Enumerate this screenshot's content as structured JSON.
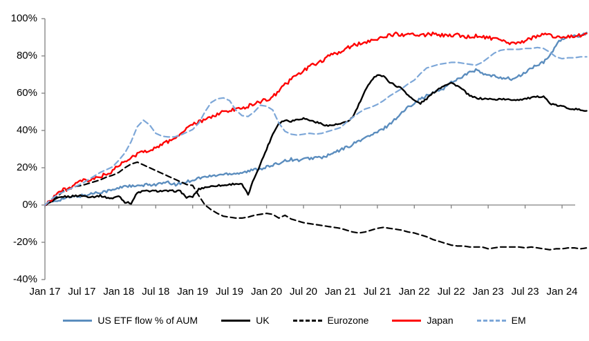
{
  "chart_data": {
    "type": "line",
    "title": "",
    "xlabel": "",
    "ylabel": "",
    "x_start": "Jan 2017",
    "x_frequency": "monthly",
    "x_tick_labels": [
      "Jan 17",
      "Jul 17",
      "Jan 18",
      "Jul 18",
      "Jan 19",
      "Jul 19",
      "Jan 20",
      "Jul 20",
      "Jan 21",
      "Jul 21",
      "Jan 22",
      "Jul 22",
      "Jan 23",
      "Jul 23",
      "Jan 24"
    ],
    "y_tick_labels": [
      "100%",
      "80%",
      "60%",
      "40%",
      "20%",
      "0%",
      "-20%",
      "-40%"
    ],
    "y_tick_values": [
      100,
      80,
      60,
      40,
      20,
      0,
      -20,
      -40
    ],
    "ylim": [
      -40,
      100
    ],
    "grid": false,
    "legend_position": "bottom",
    "axis_color": "#808080",
    "series": [
      {
        "name": "US ETF flow % of AUM",
        "color": "#5b8dbe",
        "style": "solid",
        "values": [
          0,
          1.5,
          2.5,
          3.5,
          4,
          4.5,
          5,
          5.5,
          6.5,
          7,
          7.5,
          8,
          9,
          10.5,
          10,
          10,
          10.5,
          11,
          11,
          11.5,
          12,
          11,
          11.5,
          12.5,
          13.5,
          14.5,
          15,
          15.5,
          16,
          16.5,
          17,
          17,
          17.5,
          18,
          19,
          19.5,
          20.5,
          21,
          22.5,
          24,
          24.5,
          24,
          24.5,
          25,
          25.5,
          25.5,
          26.5,
          28,
          29.5,
          31,
          32.5,
          34.5,
          36,
          37.5,
          39,
          41,
          43.5,
          46.5,
          49.5,
          52.5,
          55,
          57,
          58.5,
          60,
          61.5,
          63,
          66,
          67.5,
          69.5,
          71,
          72.5,
          70.5,
          69.5,
          69,
          68.5,
          68,
          67.5,
          69,
          71,
          73.5,
          75,
          76.5,
          80,
          86,
          89,
          90,
          90.5,
          91,
          92.5
        ]
      },
      {
        "name": "UK",
        "color": "#000000",
        "style": "solid",
        "values": [
          0,
          1.5,
          3.5,
          4.5,
          4.5,
          5,
          5,
          4.5,
          4.5,
          5,
          4,
          3.5,
          5,
          1.5,
          1,
          6.5,
          7.5,
          7.5,
          7.5,
          7.5,
          7.5,
          7.5,
          7.5,
          4,
          4.5,
          8.5,
          9.5,
          10,
          10.5,
          10.5,
          11,
          11.5,
          11,
          5.5,
          14.5,
          22,
          30,
          38,
          44,
          45.5,
          45,
          46,
          46.5,
          45.5,
          44.5,
          43.5,
          42.5,
          43,
          43.5,
          44.5,
          47,
          54,
          61,
          67,
          70,
          69,
          66,
          64,
          62.5,
          59,
          56,
          54.5,
          57,
          60,
          62.5,
          64.5,
          65.5,
          64,
          61.5,
          58.5,
          57.5,
          57,
          57,
          56.5,
          57,
          56.5,
          56.5,
          56.5,
          57,
          57.5,
          58,
          58.5,
          54.5,
          53.5,
          53,
          52,
          51.5,
          51,
          50.5
        ]
      },
      {
        "name": "Eurozone",
        "color": "#000000",
        "style": "dashed",
        "values": [
          0,
          2,
          4.5,
          7.5,
          9,
          10,
          10.5,
          11.5,
          12.5,
          13.5,
          15,
          16,
          17.5,
          20,
          22,
          23,
          21.5,
          20,
          18.5,
          17,
          15.5,
          14,
          12.5,
          11,
          10.5,
          5,
          0,
          -2.5,
          -4.5,
          -6,
          -6.5,
          -7,
          -7,
          -6.5,
          -5.5,
          -5,
          -4.5,
          -5,
          -7,
          -5.5,
          -7.5,
          -8.5,
          -9.5,
          -10,
          -10.5,
          -11,
          -11.5,
          -12,
          -12.5,
          -13.5,
          -14.5,
          -15,
          -14.5,
          -13.5,
          -12.5,
          -12,
          -12.5,
          -13,
          -13.5,
          -14.5,
          -15,
          -16,
          -17,
          -18.5,
          -19.5,
          -20.5,
          -21.5,
          -22,
          -22,
          -22.5,
          -22.5,
          -22.5,
          -23.5,
          -23,
          -22.5,
          -22.5,
          -22.5,
          -22.5,
          -23,
          -22.5,
          -23,
          -23.5,
          -24,
          -23.5,
          -23.5,
          -23,
          -23,
          -23.5,
          -23
        ]
      },
      {
        "name": "Japan",
        "color": "#fe0000",
        "style": "solid",
        "values": [
          0,
          3,
          6.5,
          8,
          9,
          11,
          13,
          13,
          14,
          15.5,
          16.5,
          18,
          21.5,
          23,
          25,
          27.5,
          28.5,
          29.5,
          31,
          32.5,
          34,
          36,
          38,
          41,
          43,
          44.5,
          45.5,
          47.5,
          48.5,
          50,
          50.5,
          51.5,
          52,
          53,
          54.5,
          55.5,
          56.5,
          58,
          61,
          64.5,
          67.5,
          70,
          72,
          74,
          76,
          77.5,
          79.5,
          81,
          82.5,
          84,
          85.5,
          86.5,
          87.5,
          88.5,
          89.5,
          90,
          91,
          92,
          91,
          91.5,
          92,
          91,
          91.5,
          92,
          90.5,
          91.5,
          91,
          91.5,
          90.5,
          90,
          91,
          90,
          90,
          89,
          88,
          87,
          86.5,
          87,
          88,
          89.5,
          91,
          91.5,
          91,
          90.5,
          90,
          90.5,
          90.5,
          91,
          92
        ]
      },
      {
        "name": "EM",
        "color": "#7da7d8",
        "style": "dashed",
        "values": [
          0,
          3,
          5.5,
          7,
          8.5,
          10,
          11.5,
          13.5,
          15.5,
          17.5,
          19,
          20.5,
          24,
          28,
          34,
          42,
          45.5,
          43,
          38.5,
          37,
          36.5,
          36.5,
          37.5,
          39,
          40.5,
          44,
          50,
          55,
          57,
          57.5,
          56,
          51,
          48,
          47.5,
          50,
          53.5,
          53,
          51,
          44,
          39.5,
          38,
          37.5,
          38,
          38.5,
          38,
          38.5,
          39.5,
          40.5,
          41.5,
          44.5,
          47,
          49.5,
          51.5,
          52.5,
          54,
          56,
          58.5,
          60.5,
          62.5,
          65,
          67,
          70.5,
          73.5,
          74.5,
          75.5,
          76,
          76.5,
          76.5,
          76,
          75.5,
          75,
          76.5,
          79,
          81.5,
          83,
          83.5,
          83.5,
          83.5,
          84,
          84,
          84.5,
          84,
          82,
          79.5,
          78.5,
          79,
          79,
          79.5,
          79.5
        ]
      }
    ]
  }
}
